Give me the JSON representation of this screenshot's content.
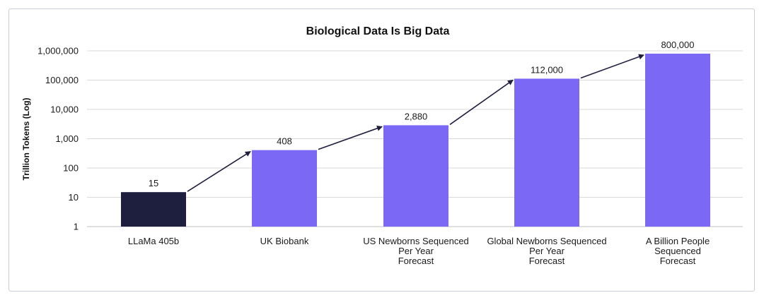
{
  "chart_data": {
    "type": "bar",
    "title": "Biological Data Is Big Data",
    "ylabel": "Trillion Tokens (Log)",
    "xlabel": "",
    "yscale": "log",
    "ylim": [
      1,
      1000000
    ],
    "yticks": [
      {
        "value": 1,
        "label": "1"
      },
      {
        "value": 10,
        "label": "10"
      },
      {
        "value": 100,
        "label": "100"
      },
      {
        "value": 1000,
        "label": "1,000"
      },
      {
        "value": 10000,
        "label": "10,000"
      },
      {
        "value": 100000,
        "label": "100,000"
      },
      {
        "value": 1000000,
        "label": "1,000,000"
      }
    ],
    "grid": true,
    "categories": [
      [
        "LLaMa 405b"
      ],
      [
        "UK Biobank"
      ],
      [
        "US Newborns Sequenced",
        "Per Year",
        "Forecast"
      ],
      [
        "Global Newborns Sequenced",
        "Per Year",
        "Forecast"
      ],
      [
        "A Billion People",
        "Sequenced",
        "Forecast"
      ]
    ],
    "values": [
      15,
      408,
      2880,
      112000,
      800000
    ],
    "data_labels": [
      "15",
      "408",
      "2,880",
      "112,000",
      "800,000"
    ],
    "bar_colors": [
      "#1e1f3f",
      "#7b68f5",
      "#7b68f5",
      "#7b68f5",
      "#7b68f5"
    ],
    "arrows_between_bars": true
  },
  "colors": {
    "grid": "#d9d9d9",
    "axis": "#bfbfbf",
    "arrow": "#1e1f3f"
  }
}
